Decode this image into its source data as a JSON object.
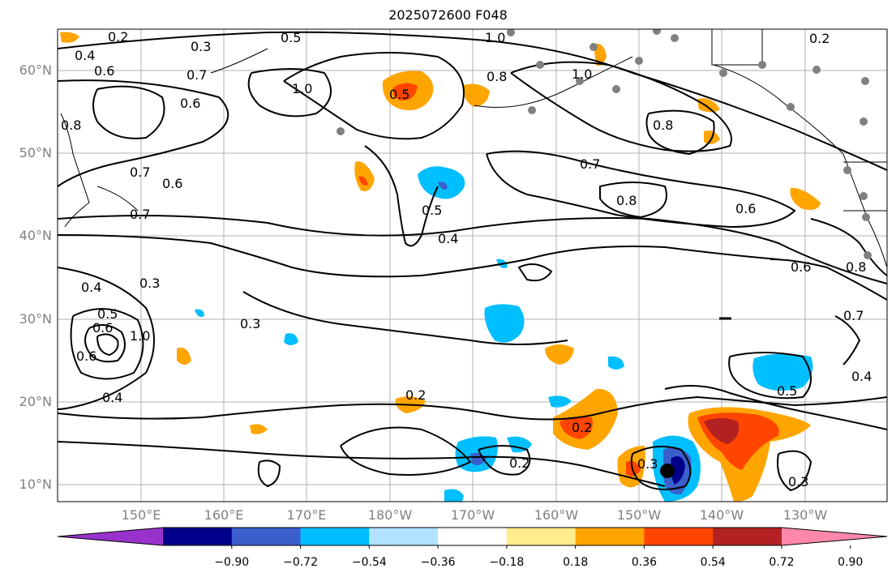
{
  "title": "2025072600 F048",
  "lat_labels": [
    "60°N",
    "50°N",
    "40°N",
    "30°N",
    "20°N",
    "10°N"
  ],
  "lon_labels": [
    "150°E",
    "160°E",
    "170°E",
    "180°W",
    "170°W",
    "160°W",
    "150°W",
    "140°W",
    "130°W"
  ],
  "colorbar": {
    "colors": [
      "#9932CC",
      "#00008B",
      "#3A5FCD",
      "#00BFFF",
      "#B0E2FF",
      "#FFFFFF",
      "#FFEC8B",
      "#FFA500",
      "#FF4500",
      "#B22222",
      "#FF88AA"
    ],
    "tick_labels": [
      "−0.90",
      "−0.72",
      "−0.54",
      "−0.36",
      "−0.18",
      "0.18",
      "0.36",
      "0.54",
      "0.72",
      "0.90"
    ]
  },
  "contour_labels": [
    "0.2",
    "0.3",
    "0.4",
    "0.5",
    "0.6",
    "0.7",
    "0.8",
    "1.0"
  ],
  "colors": {
    "land": "#ffffff",
    "grid": "#b0b0b0",
    "contour": "#000000",
    "station": "#808080"
  }
}
